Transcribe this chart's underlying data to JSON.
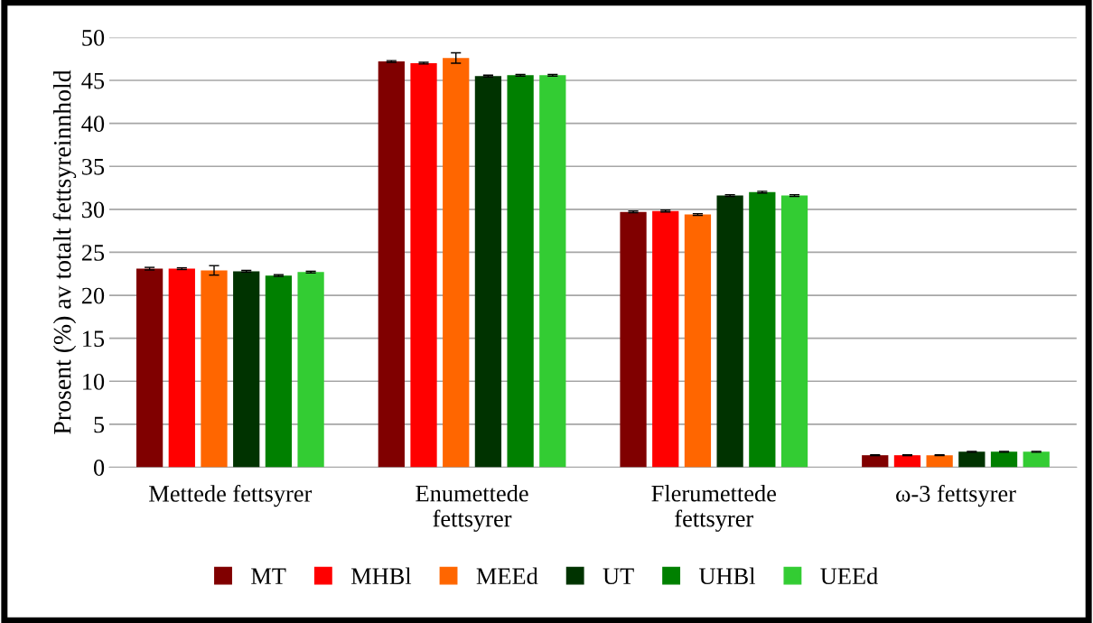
{
  "chart_data": {
    "type": "bar",
    "ylabel": "Prosent (%) av totalt fettsyreinnhold",
    "categories": [
      "Mettede fettsyrer",
      "Enumettede\nfettsyrer",
      "Flerumettede\nfettsyrer",
      "ω-3 fettsyrer"
    ],
    "series": [
      {
        "name": "MT",
        "color": "#800000",
        "values": [
          23.1,
          47.2,
          29.7,
          1.4
        ],
        "errors": [
          0.15,
          0.1,
          0.1,
          0.05
        ]
      },
      {
        "name": "MHBl",
        "color": "#ff0000",
        "values": [
          23.1,
          47.0,
          29.8,
          1.4
        ],
        "errors": [
          0.1,
          0.1,
          0.1,
          0.05
        ]
      },
      {
        "name": "MEEd",
        "color": "#ff6600",
        "values": [
          22.9,
          47.6,
          29.4,
          1.4
        ],
        "errors": [
          0.55,
          0.6,
          0.1,
          0.05
        ]
      },
      {
        "name": "UT",
        "color": "#003300",
        "values": [
          22.8,
          45.5,
          31.6,
          1.8
        ],
        "errors": [
          0.1,
          0.1,
          0.1,
          0.05
        ]
      },
      {
        "name": "UHBl",
        "color": "#008000",
        "values": [
          22.3,
          45.6,
          32.0,
          1.8
        ],
        "errors": [
          0.1,
          0.1,
          0.1,
          0.05
        ]
      },
      {
        "name": "UEEd",
        "color": "#33cc33",
        "values": [
          22.7,
          45.6,
          31.6,
          1.8
        ],
        "errors": [
          0.1,
          0.1,
          0.1,
          0.05
        ]
      }
    ],
    "ylim": [
      0,
      50
    ],
    "yticks": [
      0,
      5,
      10,
      15,
      20,
      25,
      30,
      35,
      40,
      45,
      50
    ],
    "grid": "y",
    "legend": "bottom"
  }
}
